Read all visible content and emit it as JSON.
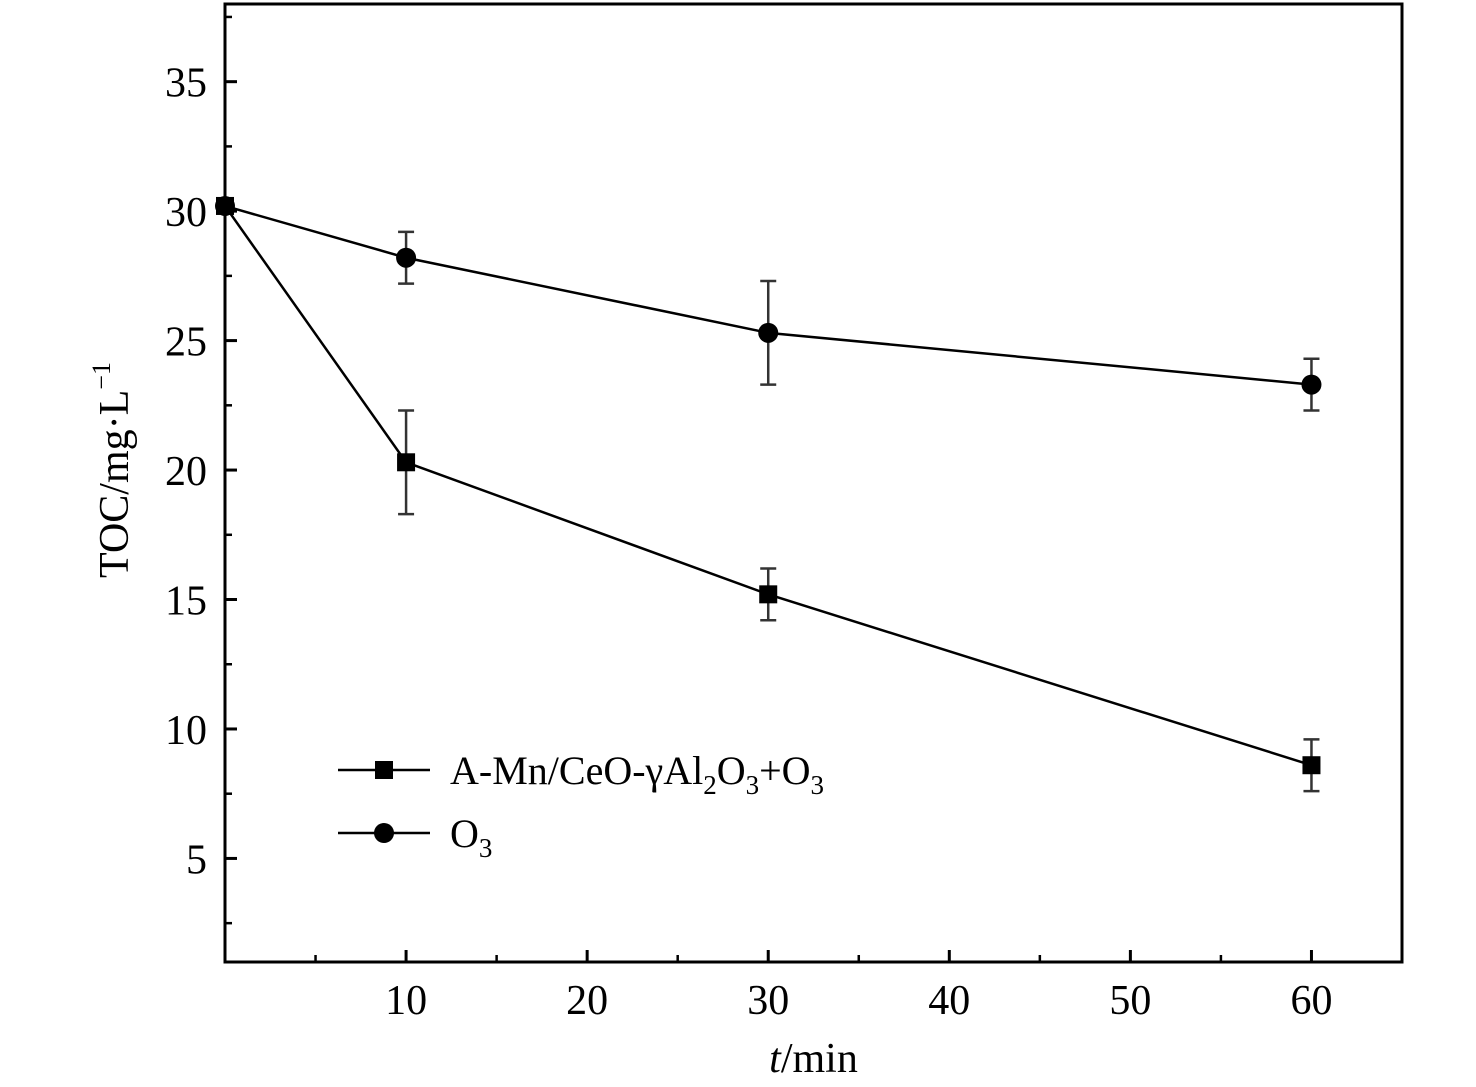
{
  "chart_data": {
    "type": "line",
    "title": "",
    "xlabel": {
      "italic": "t",
      "rest": "/min"
    },
    "ylabel": {
      "main": "TOC/mg·L",
      "sup": "−1"
    },
    "x_ticks": [
      10,
      20,
      30,
      40,
      50,
      60
    ],
    "y_ticks": [
      5,
      10,
      15,
      20,
      25,
      30,
      35
    ],
    "xlim": [
      0,
      65
    ],
    "ylim": [
      1,
      38
    ],
    "grid": false,
    "legend_position": "bottom-left",
    "series": [
      {
        "name": "A-Mn/CeO-γAl2O3+O3",
        "legend_parts": [
          {
            "t": "A-Mn/CeO-γAl",
            "sub": false
          },
          {
            "t": "2",
            "sub": true
          },
          {
            "t": "O",
            "sub": false
          },
          {
            "t": "3",
            "sub": true
          },
          {
            "t": "+O",
            "sub": false
          },
          {
            "t": "3",
            "sub": true
          }
        ],
        "marker": "square",
        "color": "#000000",
        "x": [
          0,
          10,
          30,
          60
        ],
        "y": [
          30.2,
          20.3,
          15.2,
          8.6
        ],
        "error": [
          0,
          2.0,
          1.0,
          1.0
        ]
      },
      {
        "name": "O3",
        "legend_parts": [
          {
            "t": "O",
            "sub": false
          },
          {
            "t": "3",
            "sub": true
          }
        ],
        "marker": "circle",
        "color": "#000000",
        "x": [
          0,
          10,
          30,
          60
        ],
        "y": [
          30.2,
          28.2,
          25.3,
          23.3
        ],
        "error": [
          0,
          1.0,
          2.0,
          1.0
        ]
      }
    ]
  }
}
